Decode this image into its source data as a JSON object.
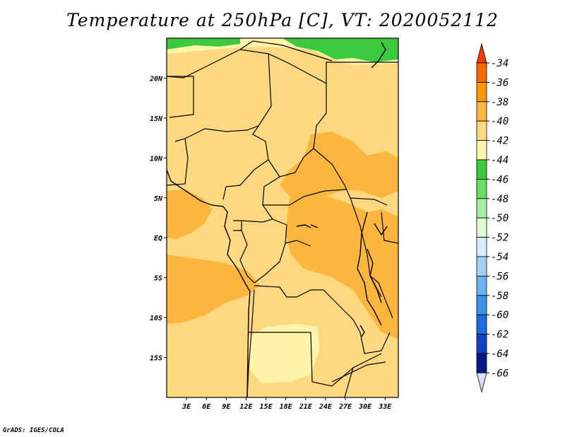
{
  "title": "Temperature at 250hPa [C], VT: 2020052112",
  "credit": "GrADS: IGES/COLA",
  "map": {
    "lon_range": [
      0,
      35
    ],
    "lat_range": [
      -20,
      25
    ],
    "lon_ticks": [
      "3E",
      "6E",
      "9E",
      "12E",
      "15E",
      "18E",
      "21E",
      "24E",
      "27E",
      "30E",
      "33E"
    ],
    "lat_ticks": [
      "20N",
      "15N",
      "10N",
      "5N",
      "EQ",
      "5S",
      "10S",
      "15S"
    ]
  },
  "colorbar": {
    "labels": [
      "-34",
      "-36",
      "-38",
      "-40",
      "-42",
      "-44",
      "-46",
      "-48",
      "-50",
      "-52",
      "-54",
      "-56",
      "-58",
      "-60",
      "-62",
      "-64",
      "-66"
    ],
    "colors": [
      "#f03c00",
      "#f66a00",
      "#f89a00",
      "#fbb73d",
      "#fcd880",
      "#fff5aa",
      "#3dc93d",
      "#68e068",
      "#a5f0a5",
      "#e1fcd4",
      "#d4ecfc",
      "#9fd0f6",
      "#6ab4f2",
      "#3c93ec",
      "#1f6be0",
      "#1142c0",
      "#08178a",
      "#dcdcf8"
    ]
  }
}
